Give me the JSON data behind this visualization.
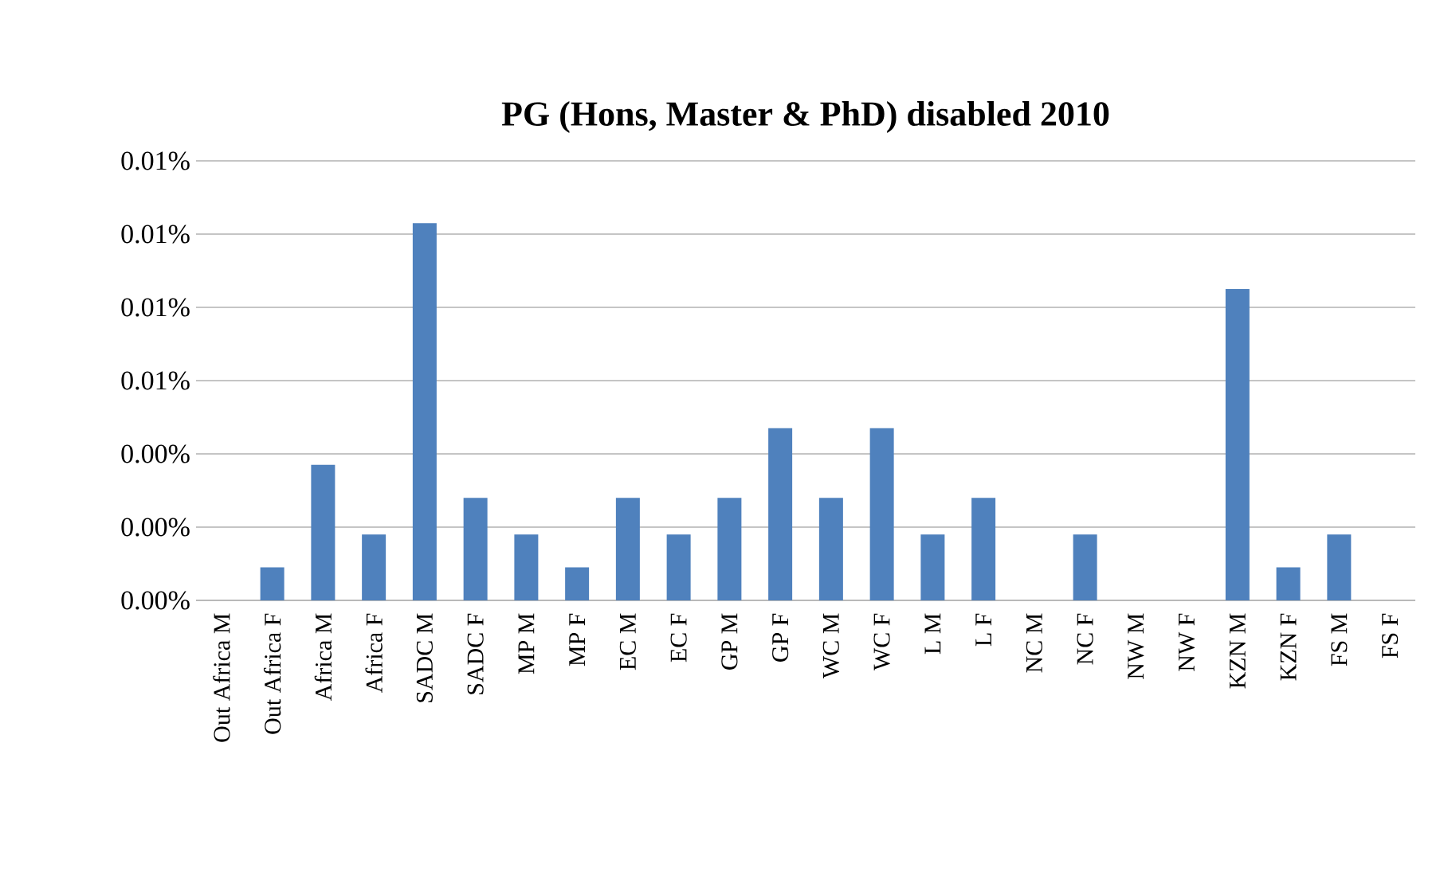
{
  "chart_data": {
    "type": "bar",
    "title": "PG (Hons, Master & PhD) disabled 2010",
    "categories": [
      "Out Africa M",
      "Out Africa F",
      "Africa M",
      "Africa F",
      "SADC M",
      "SADC F",
      "MP M",
      "MP F",
      "EC M",
      "EC F",
      "GP M",
      "GP F",
      "WC M",
      "WC F",
      "L M",
      "L F",
      "NC M",
      "NC F",
      "NW M",
      "NW F",
      "KZN M",
      "KZN F",
      "FS M",
      "FS F"
    ],
    "values": [
      0,
      0.0009,
      0.0037,
      0.0018,
      0.0103,
      0.0028,
      0.0018,
      0.0009,
      0.0028,
      0.0018,
      0.0028,
      0.0047,
      0.0028,
      0.0047,
      0.0018,
      0.0028,
      0,
      0.0018,
      0,
      0,
      0.0085,
      0.0009,
      0.0018,
      0
    ],
    "color": "#4f81bd",
    "ylim": [
      0,
      0.012
    ],
    "yticks": [
      {
        "value": 0,
        "label": "0.00%"
      },
      {
        "value": 0.002,
        "label": "0.00%"
      },
      {
        "value": 0.004,
        "label": "0.00%"
      },
      {
        "value": 0.006,
        "label": "0.01%"
      },
      {
        "value": 0.008,
        "label": "0.01%"
      },
      {
        "value": 0.01,
        "label": "0.01%"
      },
      {
        "value": 0.012,
        "label": "0.01%"
      }
    ],
    "grid": "y"
  }
}
